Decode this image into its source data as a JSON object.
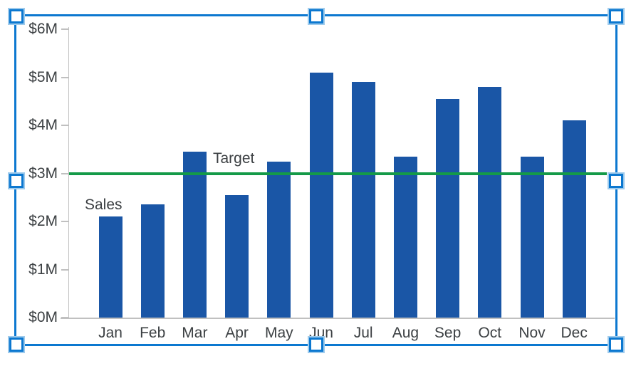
{
  "chart_data": {
    "type": "bar",
    "title": "",
    "categories": [
      "Jan",
      "Feb",
      "Mar",
      "Apr",
      "May",
      "Jun",
      "Jul",
      "Aug",
      "Sep",
      "Oct",
      "Nov",
      "Dec"
    ],
    "series": [
      {
        "name": "Sales",
        "values": [
          2.1,
          2.35,
          3.45,
          2.55,
          3.25,
          5.1,
          4.9,
          3.35,
          4.55,
          4.8,
          3.35,
          4.1
        ]
      }
    ],
    "y_unit": "$M",
    "y_ticks": [
      {
        "label": "$0M",
        "value": 0
      },
      {
        "label": "$1M",
        "value": 1
      },
      {
        "label": "$2M",
        "value": 2
      },
      {
        "label": "$3M",
        "value": 3
      },
      {
        "label": "$4M",
        "value": 4
      },
      {
        "label": "$5M",
        "value": 5
      },
      {
        "label": "$6M",
        "value": 6
      }
    ],
    "ylim": [
      0,
      6
    ],
    "grid": false,
    "legend": "none",
    "target_line": {
      "label": "Target",
      "value": 3
    },
    "annotations": {
      "sales": "Sales",
      "target": "Target"
    },
    "colors": {
      "bar": "#1a56a6",
      "target": "#149a48",
      "axis": "#c0c0c0",
      "text": "#3c4043"
    }
  },
  "selection": {
    "state": "selected",
    "border_color": "#0c78d0",
    "handle_fill": "#ffffff",
    "handle_halo": "#9fcbec",
    "handles": [
      "top-left",
      "top-center",
      "top-right",
      "middle-left",
      "middle-right",
      "bottom-left",
      "bottom-center",
      "bottom-right"
    ]
  }
}
